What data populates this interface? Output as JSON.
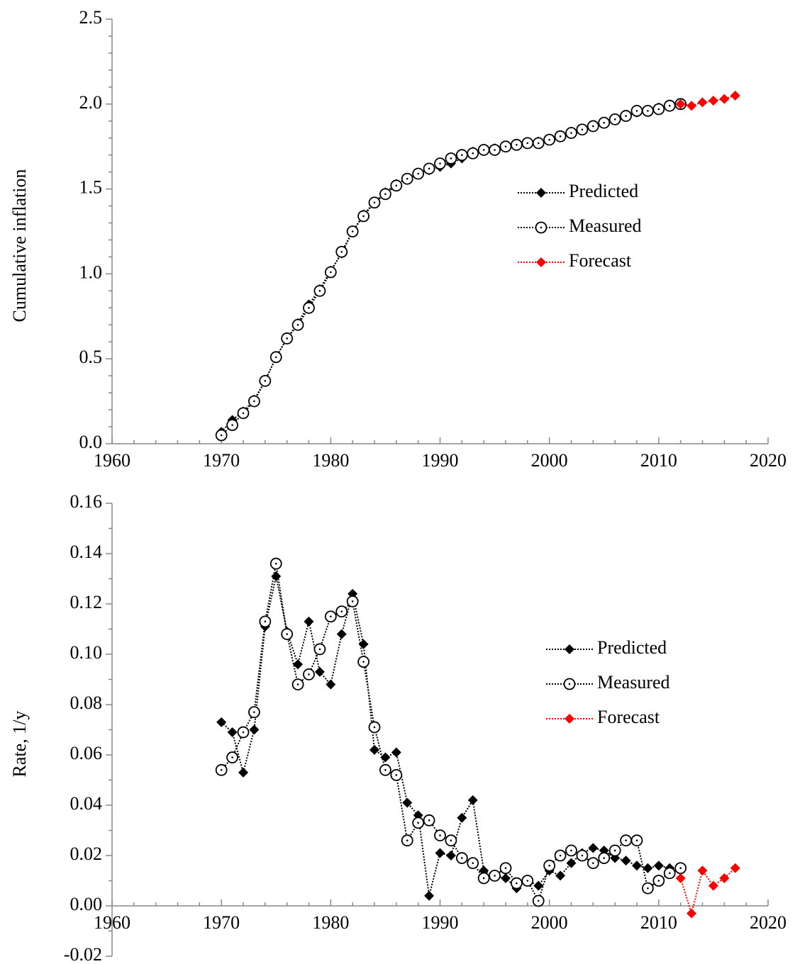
{
  "chart_data": [
    {
      "type": "line",
      "ylabel": "Cumulative inflation",
      "xlim": [
        1960,
        2020
      ],
      "xticks": [
        1960,
        1970,
        1980,
        1990,
        2000,
        2010,
        2020
      ],
      "ylim": [
        0,
        2.5
      ],
      "yticks": [
        {
          "value": 0,
          "label": "0.0"
        },
        0.5,
        {
          "value": 1,
          "label": "1.0"
        },
        1.5,
        {
          "value": 2,
          "label": "2.0"
        },
        2.5
      ],
      "series": [
        {
          "name": "Predicted",
          "color": "#000000",
          "marker": "diamond",
          "x": [
            1970,
            1971,
            1972,
            1973,
            1974,
            1975,
            1976,
            1977,
            1978,
            1979,
            1980,
            1981,
            1982,
            1983,
            1984,
            1985,
            1986,
            1987,
            1988,
            1989,
            1990,
            1991,
            1992,
            1993,
            1994,
            1995,
            1996,
            1997,
            1998,
            1999,
            2000,
            2001,
            2002,
            2003,
            2004,
            2005,
            2006,
            2007,
            2008,
            2009,
            2010,
            2011,
            2012
          ],
          "values": [
            0.07,
            0.14,
            0.19,
            0.26,
            0.37,
            0.51,
            0.62,
            0.71,
            0.82,
            0.91,
            1.02,
            1.12,
            1.25,
            1.35,
            1.42,
            1.48,
            1.53,
            1.56,
            1.59,
            1.61,
            1.63,
            1.65,
            1.68,
            1.72,
            1.73,
            1.74,
            1.75,
            1.76,
            1.77,
            1.78,
            1.79,
            1.81,
            1.83,
            1.85,
            1.87,
            1.89,
            1.91,
            1.93,
            1.95,
            1.96,
            1.98,
            1.99,
            2.0
          ]
        },
        {
          "name": "Measured",
          "color": "#000000",
          "marker": "circle",
          "x": [
            1970,
            1971,
            1972,
            1973,
            1974,
            1975,
            1976,
            1977,
            1978,
            1979,
            1980,
            1981,
            1982,
            1983,
            1984,
            1985,
            1986,
            1987,
            1988,
            1989,
            1990,
            1991,
            1992,
            1993,
            1994,
            1995,
            1996,
            1997,
            1998,
            1999,
            2000,
            2001,
            2002,
            2003,
            2004,
            2005,
            2006,
            2007,
            2008,
            2009,
            2010,
            2011,
            2012
          ],
          "values": [
            0.05,
            0.11,
            0.18,
            0.25,
            0.37,
            0.51,
            0.62,
            0.7,
            0.8,
            0.9,
            1.01,
            1.13,
            1.25,
            1.34,
            1.42,
            1.47,
            1.52,
            1.56,
            1.59,
            1.62,
            1.65,
            1.68,
            1.7,
            1.71,
            1.73,
            1.73,
            1.75,
            1.76,
            1.77,
            1.77,
            1.79,
            1.81,
            1.83,
            1.85,
            1.87,
            1.89,
            1.91,
            1.93,
            1.96,
            1.96,
            1.97,
            1.99,
            2.0
          ]
        },
        {
          "name": "Forecast",
          "color": "#ff0000",
          "marker": "diamond",
          "x": [
            2012,
            2013,
            2014,
            2015,
            2016,
            2017
          ],
          "values": [
            2.0,
            1.99,
            2.01,
            2.02,
            2.03,
            2.05
          ]
        }
      ]
    },
    {
      "type": "line",
      "ylabel": "Rate, 1/y",
      "xlim": [
        1960,
        2020
      ],
      "xticks": [
        1960,
        1970,
        1980,
        1990,
        2000,
        2010,
        2020
      ],
      "ylim": [
        -0.02,
        0.16
      ],
      "yticks": [
        {
          "value": -0.02,
          "label": "-0.02"
        },
        {
          "value": 0,
          "label": "0.00"
        },
        0.02,
        0.04,
        0.06,
        0.08,
        {
          "value": 0.1,
          "label": "0.10"
        },
        0.12,
        0.14,
        0.16
      ],
      "series": [
        {
          "name": "Predicted",
          "color": "#000000",
          "marker": "diamond",
          "x": [
            1970,
            1971,
            1972,
            1973,
            1974,
            1975,
            1976,
            1977,
            1978,
            1979,
            1980,
            1981,
            1982,
            1983,
            1984,
            1985,
            1986,
            1987,
            1988,
            1989,
            1990,
            1991,
            1992,
            1993,
            1994,
            1995,
            1996,
            1997,
            1998,
            1999,
            2000,
            2001,
            2002,
            2003,
            2004,
            2005,
            2006,
            2007,
            2008,
            2009,
            2010,
            2011
          ],
          "values": [
            0.073,
            0.069,
            0.053,
            0.07,
            0.111,
            0.131,
            0.109,
            0.096,
            0.113,
            0.093,
            0.088,
            0.108,
            0.124,
            0.104,
            0.062,
            0.059,
            0.061,
            0.041,
            0.036,
            0.004,
            0.021,
            0.02,
            0.035,
            0.042,
            0.014,
            0.012,
            0.011,
            0.007,
            0.01,
            0.008,
            0.014,
            0.012,
            0.017,
            0.021,
            0.023,
            0.022,
            0.019,
            0.018,
            0.016,
            0.015,
            0.016,
            0.015
          ]
        },
        {
          "name": "Measured",
          "color": "#000000",
          "marker": "circle",
          "x": [
            1970,
            1971,
            1972,
            1973,
            1974,
            1975,
            1976,
            1977,
            1978,
            1979,
            1980,
            1981,
            1982,
            1983,
            1984,
            1985,
            1986,
            1987,
            1988,
            1989,
            1990,
            1991,
            1992,
            1993,
            1994,
            1995,
            1996,
            1997,
            1998,
            1999,
            2000,
            2001,
            2002,
            2003,
            2004,
            2005,
            2006,
            2007,
            2008,
            2009,
            2010,
            2011,
            2012
          ],
          "values": [
            0.054,
            0.059,
            0.069,
            0.077,
            0.113,
            0.136,
            0.108,
            0.088,
            0.092,
            0.102,
            0.115,
            0.117,
            0.121,
            0.097,
            0.071,
            0.054,
            0.052,
            0.026,
            0.033,
            0.034,
            0.028,
            0.026,
            0.019,
            0.017,
            0.011,
            0.012,
            0.015,
            0.009,
            0.01,
            0.002,
            0.016,
            0.02,
            0.022,
            0.02,
            0.017,
            0.019,
            0.022,
            0.026,
            0.026,
            0.007,
            0.01,
            0.013,
            0.015
          ]
        },
        {
          "name": "Forecast",
          "color": "#ff0000",
          "marker": "diamond",
          "x": [
            2012,
            2013,
            2014,
            2015,
            2016,
            2017
          ],
          "values": [
            0.011,
            -0.003,
            0.014,
            0.008,
            0.011,
            0.015
          ]
        }
      ]
    }
  ]
}
